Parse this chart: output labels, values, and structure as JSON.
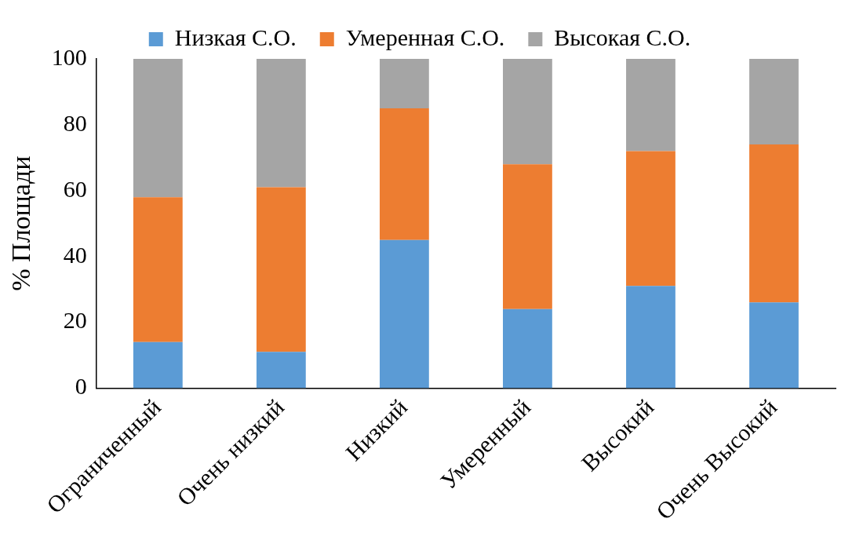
{
  "chart_data": {
    "type": "bar",
    "stacked": true,
    "ylabel": "% Площади",
    "categories": [
      "Ограниченный",
      "Очень низкий",
      "Низкий",
      "Умеренный",
      "Высокий",
      "Очень Высокий"
    ],
    "series": [
      {
        "name": "Низкая С.О.",
        "color": "#5b9bd5",
        "values": [
          14,
          11,
          45,
          24,
          31,
          26
        ]
      },
      {
        "name": "Умеренная С.О.",
        "color": "#ed7d31",
        "values": [
          44,
          50,
          40,
          44,
          41,
          48
        ]
      },
      {
        "name": "Высокая С.О.",
        "color": "#a5a5a5",
        "values": [
          42,
          39,
          15,
          32,
          28,
          26
        ]
      }
    ],
    "ylim": [
      0,
      100
    ],
    "yticks": [
      0,
      20,
      40,
      60,
      80,
      100
    ],
    "grid": false,
    "legend": "top"
  }
}
